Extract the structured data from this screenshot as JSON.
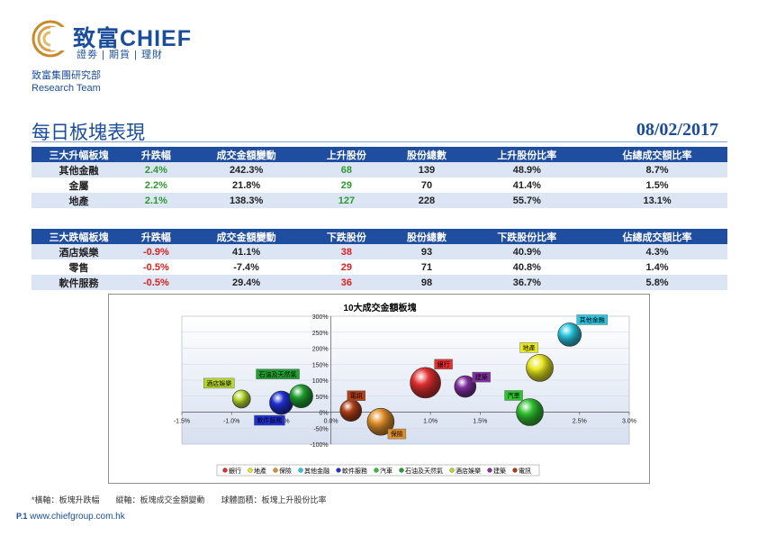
{
  "brand": {
    "name": "致富CHIEF",
    "tagline": "證劵 | 期貨 | 理財"
  },
  "department": {
    "name_zh": "致富集團研究部",
    "name_en": "Research Team"
  },
  "page": {
    "title": "每日板塊表現",
    "date": "08/02/2017"
  },
  "colors": {
    "header_blue": "#1f4ea1",
    "row_alt": "#dbe5f4",
    "up_green": "#2e9a2e",
    "down_red": "#e02020",
    "plot_bg": "#d7e0f0"
  },
  "up_table": {
    "headers": [
      "三大升幅板塊",
      "升跌幅",
      "成交金額變動",
      "上升股份",
      "股份總數",
      "上升股份比率",
      "佔總成交額比率"
    ],
    "rows": [
      [
        "其他金融",
        "2.4%",
        "242.3%",
        "68",
        "139",
        "48.9%",
        "8.7%"
      ],
      [
        "金屬",
        "2.2%",
        "21.8%",
        "29",
        "70",
        "41.4%",
        "1.5%"
      ],
      [
        "地產",
        "2.1%",
        "138.3%",
        "127",
        "228",
        "55.7%",
        "13.1%"
      ]
    ]
  },
  "down_table": {
    "headers": [
      "三大跌幅板塊",
      "升跌幅",
      "成交金額變動",
      "下跌股份",
      "股份總數",
      "下跌股份比率",
      "佔總成交額比率"
    ],
    "rows": [
      [
        "酒店娛樂",
        "-0.9%",
        "41.1%",
        "38",
        "93",
        "40.9%",
        "4.3%"
      ],
      [
        "零售",
        "-0.5%",
        "-7.4%",
        "29",
        "71",
        "40.8%",
        "1.4%"
      ],
      [
        "軟件服務",
        "-0.5%",
        "29.4%",
        "36",
        "98",
        "36.7%",
        "5.8%"
      ]
    ]
  },
  "chart_data": {
    "type": "scatter",
    "subtype": "bubble",
    "title": "10大成交金額板塊",
    "x_ticks": [
      "-1.5%",
      "-1.0%",
      "-0.5%",
      "0.0%",
      "0.5%",
      "1.0%",
      "1.5%",
      "2.0%",
      "2.5%",
      "3.0%"
    ],
    "y_ticks": [
      "-100%",
      "-50%",
      "0%",
      "50%",
      "100%",
      "150%",
      "200%",
      "250%",
      "300%"
    ],
    "xlim": [
      -1.5,
      3.0
    ],
    "ylim": [
      -100,
      300
    ],
    "legend_position": "bottom",
    "series": [
      {
        "name": "銀行",
        "x": 0.95,
        "y": 92,
        "r": 17,
        "color": "#e03030"
      },
      {
        "name": "地產",
        "x": 2.1,
        "y": 138.3,
        "r": 15,
        "color": "#e8e820"
      },
      {
        "name": "保險",
        "x": 0.5,
        "y": -30,
        "r": 15,
        "color": "#e0902a"
      },
      {
        "name": "其他金融",
        "x": 2.4,
        "y": 242.3,
        "r": 13,
        "color": "#2cc6e0"
      },
      {
        "name": "軟件服務",
        "x": -0.5,
        "y": 29.4,
        "r": 13,
        "color": "#2030d0"
      },
      {
        "name": "汽車",
        "x": 2.0,
        "y": 0,
        "r": 15,
        "color": "#30c030"
      },
      {
        "name": "石油及天然氣",
        "x": -0.3,
        "y": 50,
        "r": 13,
        "color": "#20a030"
      },
      {
        "name": "酒店娛樂",
        "x": -0.9,
        "y": 41.1,
        "r": 10,
        "color": "#b8d830"
      },
      {
        "name": "建築",
        "x": 1.35,
        "y": 80,
        "r": 12,
        "color": "#8030a0"
      },
      {
        "name": "電訊",
        "x": 0.2,
        "y": 5,
        "r": 12,
        "color": "#b04018"
      }
    ]
  },
  "notes": {
    "axis_note": "*橫軸：板塊升跌幅　　縱軸：板塊成交金額變動　　球體面積：板塊上升股份比率"
  },
  "footer": {
    "page_no": "P.1",
    "website": "www.chiefgroup.com.hk"
  }
}
